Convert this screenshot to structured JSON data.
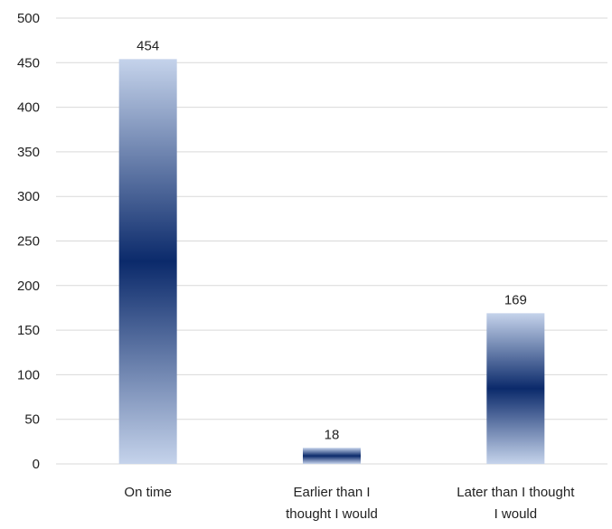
{
  "chart_data": {
    "type": "bar",
    "title": "",
    "xlabel": "",
    "ylabel": "",
    "categories": [
      "On time",
      "Earlier than I thought I would",
      "Later than I thought I would"
    ],
    "category_lines": [
      [
        "On time"
      ],
      [
        "Earlier than I",
        "thought I would"
      ],
      [
        "Later than I thought",
        "I would"
      ]
    ],
    "values": [
      454,
      18,
      169
    ],
    "data_labels": [
      "454",
      "18",
      "169"
    ],
    "ylim": [
      0,
      500
    ],
    "yticks": [
      0,
      50,
      100,
      150,
      200,
      250,
      300,
      350,
      400,
      450,
      500
    ],
    "grid": true,
    "legend": "none",
    "colors": {
      "bar_light": "#c5d3eb",
      "bar_dark": "#0b2a6b",
      "grid": "#d9d9d9",
      "text": "#222222"
    }
  }
}
